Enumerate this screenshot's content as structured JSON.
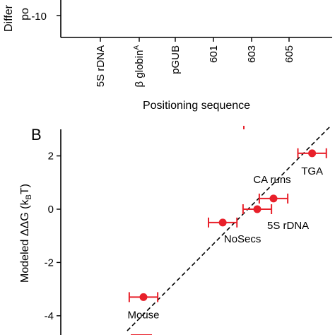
{
  "chart_data": [
    {
      "type": "scatter",
      "panel_label": "",
      "title": "",
      "ylabel_fragment": "Differ",
      "ylabel_fragment2": "po",
      "yticks": [
        -10
      ],
      "xlabel": "Positioning sequence",
      "categories": [
        "5S rDNA",
        "β globin",
        "pGUB",
        "601",
        "603",
        "605"
      ],
      "category_superscripts": [
        "",
        "A",
        "",
        "",
        "",
        ""
      ],
      "values": []
    },
    {
      "type": "scatter",
      "panel_label": "B",
      "title": "",
      "xlabel": "",
      "ylabel": "Modeled ΔΔG (k",
      "ylabel_sub": "B",
      "ylabel_end": "T)",
      "ylim": [
        -4.8,
        3.0
      ],
      "yticks": [
        2,
        0,
        -2,
        -4
      ],
      "ytick_labels": [
        "2",
        "0",
        "-2",
        "-4"
      ],
      "series": [
        {
          "points": [
            {
              "label": "TGA",
              "x": 2.55,
              "y": 2.1,
              "xerr": 0.35
            },
            {
              "label": "CA runs",
              "x": 1.6,
              "y": 0.4,
              "xerr": 0.35
            },
            {
              "label": "5S rDNA",
              "x": 1.2,
              "y": 0.0,
              "xerr": 0.35
            },
            {
              "label": "NoSecs",
              "x": 0.35,
              "y": -0.5,
              "xerr": 0.35
            },
            {
              "label": "Mouse",
              "x": -1.6,
              "y": -3.3,
              "xerr": 0.35
            }
          ]
        }
      ],
      "fit_line": {
        "style": "dashed"
      },
      "colors": {
        "points": "#e8202a",
        "line": "#000000"
      }
    }
  ]
}
